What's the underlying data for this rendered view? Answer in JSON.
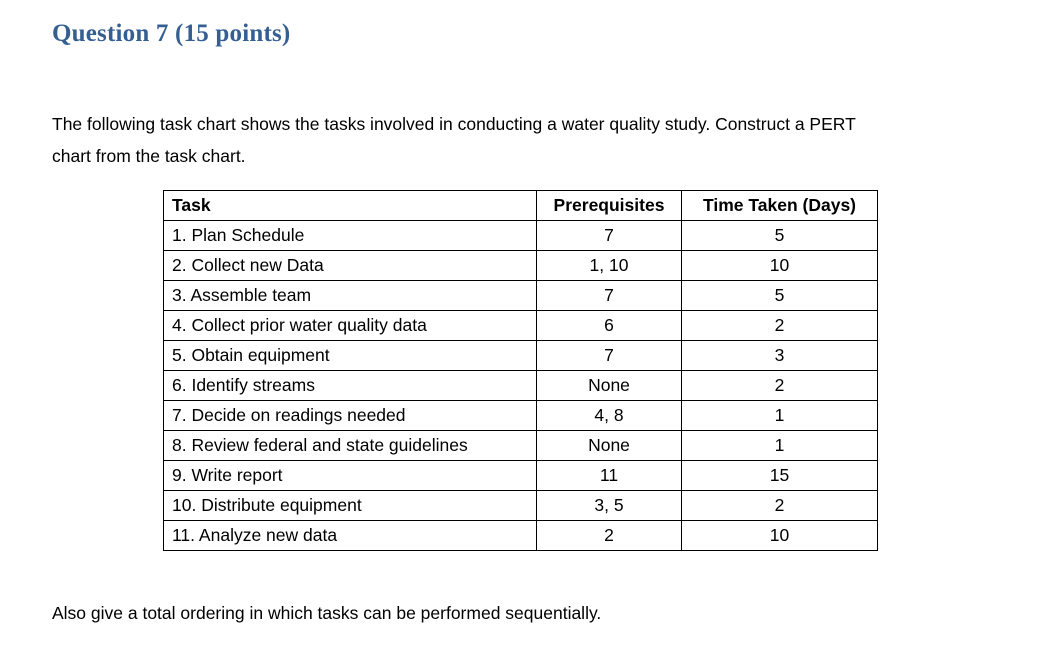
{
  "page": {
    "heading": "Question 7 (15 points)",
    "heading_color": "#365F91",
    "intro_line1": "The following task chart shows the tasks involved in conducting a water quality study. Construct a PERT",
    "intro_line2": "chart from the task chart.",
    "footer": "Also give a total ordering in which tasks can be performed sequentially."
  },
  "table": {
    "headers": [
      "Task",
      "Prerequisites",
      "Time Taken (Days)"
    ],
    "rows": [
      {
        "task": "1. Plan Schedule",
        "prerequisites": "7",
        "time": "5"
      },
      {
        "task": "2. Collect new Data",
        "prerequisites": "1, 10",
        "time": "10"
      },
      {
        "task": "3. Assemble team",
        "prerequisites": "7",
        "time": "5"
      },
      {
        "task": "4. Collect prior water quality data",
        "prerequisites": "6",
        "time": "2"
      },
      {
        "task": "5. Obtain equipment",
        "prerequisites": "7",
        "time": "3"
      },
      {
        "task": "6. Identify streams",
        "prerequisites": "None",
        "time": "2"
      },
      {
        "task": "7. Decide on readings needed",
        "prerequisites": "4, 8",
        "time": "1"
      },
      {
        "task": "8. Review federal and state guidelines",
        "prerequisites": "None",
        "time": "1"
      },
      {
        "task": "9. Write report",
        "prerequisites": "11",
        "time": "15"
      },
      {
        "task": "10. Distribute equipment",
        "prerequisites": "3, 5",
        "time": "2"
      },
      {
        "task": "11. Analyze new data",
        "prerequisites": "2",
        "time": "10"
      }
    ]
  }
}
